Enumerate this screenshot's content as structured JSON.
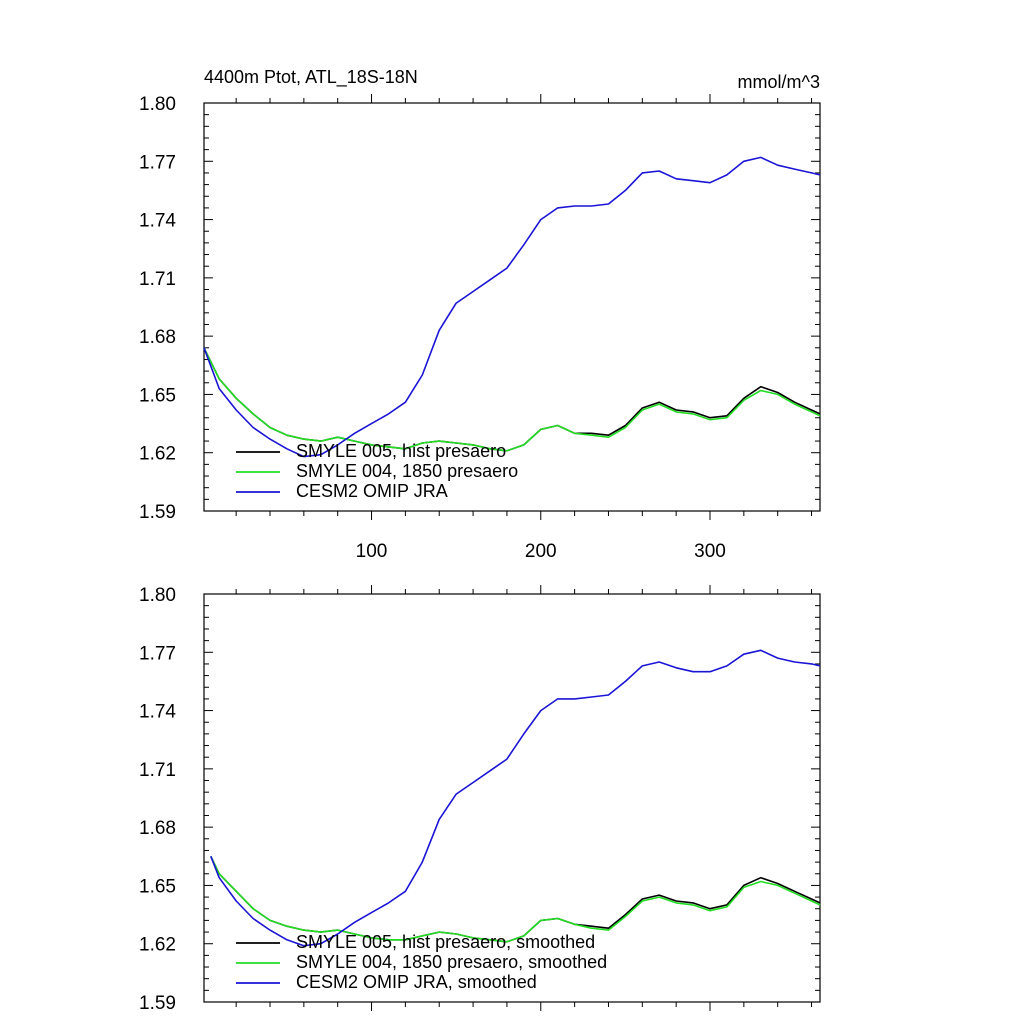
{
  "colors": {
    "black": "#000000",
    "green": "#22dd22",
    "blue": "#1a14d6"
  },
  "chart_data": [
    {
      "type": "line",
      "title": "4400m Ptot, ATL_18S-18N",
      "units": "mmol/m^3",
      "xlim": [
        1,
        365
      ],
      "ylim": [
        1.59,
        1.8
      ],
      "xticks": [
        100,
        200,
        300
      ],
      "xtick_labels": [
        "100",
        "200",
        "300"
      ],
      "yticks": [
        1.59,
        1.62,
        1.65,
        1.68,
        1.71,
        1.74,
        1.77,
        1.8
      ],
      "ytick_labels": [
        "1.59",
        "1.62",
        "1.65",
        "1.68",
        "1.71",
        "1.74",
        "1.77",
        "1.80"
      ],
      "legend_position": "bottom-left",
      "series": [
        {
          "name": "SMYLE 005, hist presaero",
          "color": "black",
          "x": [
            1,
            10,
            20,
            30,
            40,
            50,
            60,
            70,
            80,
            90,
            100,
            110,
            120,
            130,
            140,
            150,
            160,
            170,
            180,
            190,
            200,
            210,
            220,
            230,
            240,
            250,
            260,
            270,
            280,
            290,
            300,
            310,
            320,
            330,
            340,
            350,
            360,
            365
          ],
          "y": [
            1.674,
            1.658,
            1.648,
            1.64,
            1.633,
            1.629,
            1.627,
            1.626,
            1.628,
            1.626,
            1.624,
            1.623,
            1.622,
            1.625,
            1.626,
            1.625,
            1.624,
            1.622,
            1.621,
            1.624,
            1.632,
            1.634,
            1.63,
            1.63,
            1.629,
            1.634,
            1.643,
            1.646,
            1.642,
            1.641,
            1.638,
            1.639,
            1.648,
            1.654,
            1.651,
            1.646,
            1.642,
            1.64
          ]
        },
        {
          "name": "SMYLE 004, 1850 presaero",
          "color": "green",
          "x": [
            1,
            10,
            20,
            30,
            40,
            50,
            60,
            70,
            80,
            90,
            100,
            110,
            120,
            130,
            140,
            150,
            160,
            170,
            180,
            190,
            200,
            210,
            220,
            230,
            240,
            250,
            260,
            270,
            280,
            290,
            300,
            310,
            320,
            330,
            340,
            350,
            360,
            365
          ],
          "y": [
            1.674,
            1.658,
            1.648,
            1.64,
            1.633,
            1.629,
            1.627,
            1.626,
            1.628,
            1.626,
            1.624,
            1.623,
            1.622,
            1.625,
            1.626,
            1.625,
            1.624,
            1.622,
            1.621,
            1.624,
            1.632,
            1.634,
            1.63,
            1.629,
            1.628,
            1.633,
            1.642,
            1.645,
            1.641,
            1.64,
            1.637,
            1.638,
            1.647,
            1.652,
            1.65,
            1.645,
            1.641,
            1.639
          ]
        },
        {
          "name": "CESM2 OMIP JRA",
          "color": "blue",
          "x": [
            1,
            10,
            20,
            30,
            40,
            50,
            60,
            70,
            80,
            90,
            100,
            110,
            120,
            130,
            140,
            150,
            160,
            170,
            180,
            190,
            200,
            210,
            220,
            230,
            240,
            250,
            260,
            270,
            280,
            290,
            300,
            310,
            320,
            330,
            340,
            350,
            360,
            365
          ],
          "y": [
            1.674,
            1.653,
            1.642,
            1.633,
            1.627,
            1.622,
            1.618,
            1.619,
            1.624,
            1.63,
            1.635,
            1.64,
            1.646,
            1.66,
            1.683,
            1.697,
            1.703,
            1.709,
            1.715,
            1.727,
            1.74,
            1.746,
            1.747,
            1.747,
            1.748,
            1.755,
            1.764,
            1.765,
            1.761,
            1.76,
            1.759,
            1.763,
            1.77,
            1.772,
            1.768,
            1.766,
            1.764,
            1.763
          ]
        }
      ]
    },
    {
      "type": "line",
      "title": "",
      "units": "",
      "xlim": [
        1,
        365
      ],
      "ylim": [
        1.59,
        1.8
      ],
      "xticks": [
        100,
        200,
        300
      ],
      "xtick_labels": [],
      "yticks": [
        1.59,
        1.62,
        1.65,
        1.68,
        1.71,
        1.74,
        1.77,
        1.8
      ],
      "ytick_labels": [
        "1.59",
        "1.62",
        "1.65",
        "1.68",
        "1.71",
        "1.74",
        "1.77",
        "1.80"
      ],
      "legend_position": "bottom-left",
      "series": [
        {
          "name": "SMYLE 005, hist presaero, smoothed",
          "color": "black",
          "x": [
            5,
            10,
            20,
            30,
            40,
            50,
            60,
            70,
            80,
            90,
            100,
            110,
            120,
            130,
            140,
            150,
            160,
            170,
            180,
            190,
            200,
            210,
            220,
            230,
            240,
            250,
            260,
            270,
            280,
            290,
            300,
            310,
            320,
            330,
            340,
            350,
            360,
            365
          ],
          "y": [
            1.665,
            1.656,
            1.647,
            1.638,
            1.632,
            1.629,
            1.627,
            1.626,
            1.627,
            1.625,
            1.623,
            1.622,
            1.622,
            1.624,
            1.626,
            1.625,
            1.623,
            1.622,
            1.621,
            1.624,
            1.632,
            1.633,
            1.63,
            1.629,
            1.628,
            1.635,
            1.643,
            1.645,
            1.642,
            1.641,
            1.638,
            1.64,
            1.65,
            1.654,
            1.651,
            1.647,
            1.643,
            1.641
          ]
        },
        {
          "name": "SMYLE 004, 1850 presaero, smoothed",
          "color": "green",
          "x": [
            5,
            10,
            20,
            30,
            40,
            50,
            60,
            70,
            80,
            90,
            100,
            110,
            120,
            130,
            140,
            150,
            160,
            170,
            180,
            190,
            200,
            210,
            220,
            230,
            240,
            250,
            260,
            270,
            280,
            290,
            300,
            310,
            320,
            330,
            340,
            350,
            360,
            365
          ],
          "y": [
            1.665,
            1.656,
            1.647,
            1.638,
            1.632,
            1.629,
            1.627,
            1.626,
            1.627,
            1.625,
            1.623,
            1.622,
            1.622,
            1.624,
            1.626,
            1.625,
            1.623,
            1.622,
            1.621,
            1.624,
            1.632,
            1.633,
            1.63,
            1.628,
            1.627,
            1.634,
            1.642,
            1.644,
            1.641,
            1.64,
            1.637,
            1.639,
            1.649,
            1.652,
            1.65,
            1.646,
            1.642,
            1.64
          ]
        },
        {
          "name": "CESM2 OMIP JRA, smoothed",
          "color": "blue",
          "x": [
            5,
            10,
            20,
            30,
            40,
            50,
            60,
            70,
            80,
            90,
            100,
            110,
            120,
            130,
            140,
            150,
            160,
            170,
            180,
            190,
            200,
            210,
            220,
            230,
            240,
            250,
            260,
            270,
            280,
            290,
            300,
            310,
            320,
            330,
            340,
            350,
            360,
            365
          ],
          "y": [
            1.665,
            1.654,
            1.642,
            1.633,
            1.627,
            1.622,
            1.619,
            1.62,
            1.625,
            1.631,
            1.636,
            1.641,
            1.647,
            1.662,
            1.684,
            1.697,
            1.703,
            1.709,
            1.715,
            1.728,
            1.74,
            1.746,
            1.746,
            1.747,
            1.748,
            1.755,
            1.763,
            1.765,
            1.762,
            1.76,
            1.76,
            1.763,
            1.769,
            1.771,
            1.767,
            1.765,
            1.764,
            1.763
          ]
        }
      ]
    }
  ]
}
